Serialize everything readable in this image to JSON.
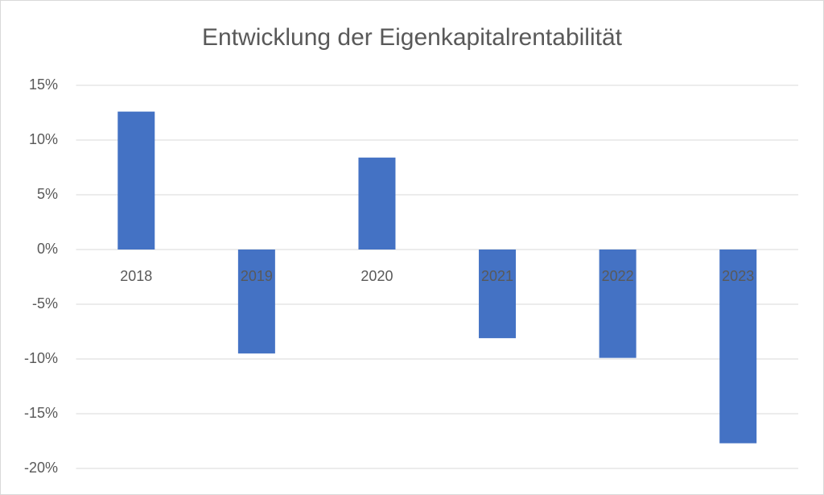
{
  "chart_data": {
    "type": "bar",
    "title": "Entwicklung der Eigenkapitalrentabilität",
    "categories": [
      "2018",
      "2019",
      "2020",
      "2021",
      "2022",
      "2023"
    ],
    "values": [
      12.6,
      -9.5,
      8.4,
      -8.1,
      -9.9,
      -17.7
    ],
    "color": "#4472c4",
    "ylim": [
      -20,
      15
    ],
    "yticks": [
      {
        "value": -20,
        "label": "-20%"
      },
      {
        "value": -15,
        "label": "-15%"
      },
      {
        "value": -10,
        "label": "-10%"
      },
      {
        "value": -5,
        "label": "-5%"
      },
      {
        "value": 0,
        "label": "0%"
      },
      {
        "value": 5,
        "label": "5%"
      },
      {
        "value": 10,
        "label": "10%"
      },
      {
        "value": 15,
        "label": "15%"
      }
    ],
    "grid": true
  }
}
